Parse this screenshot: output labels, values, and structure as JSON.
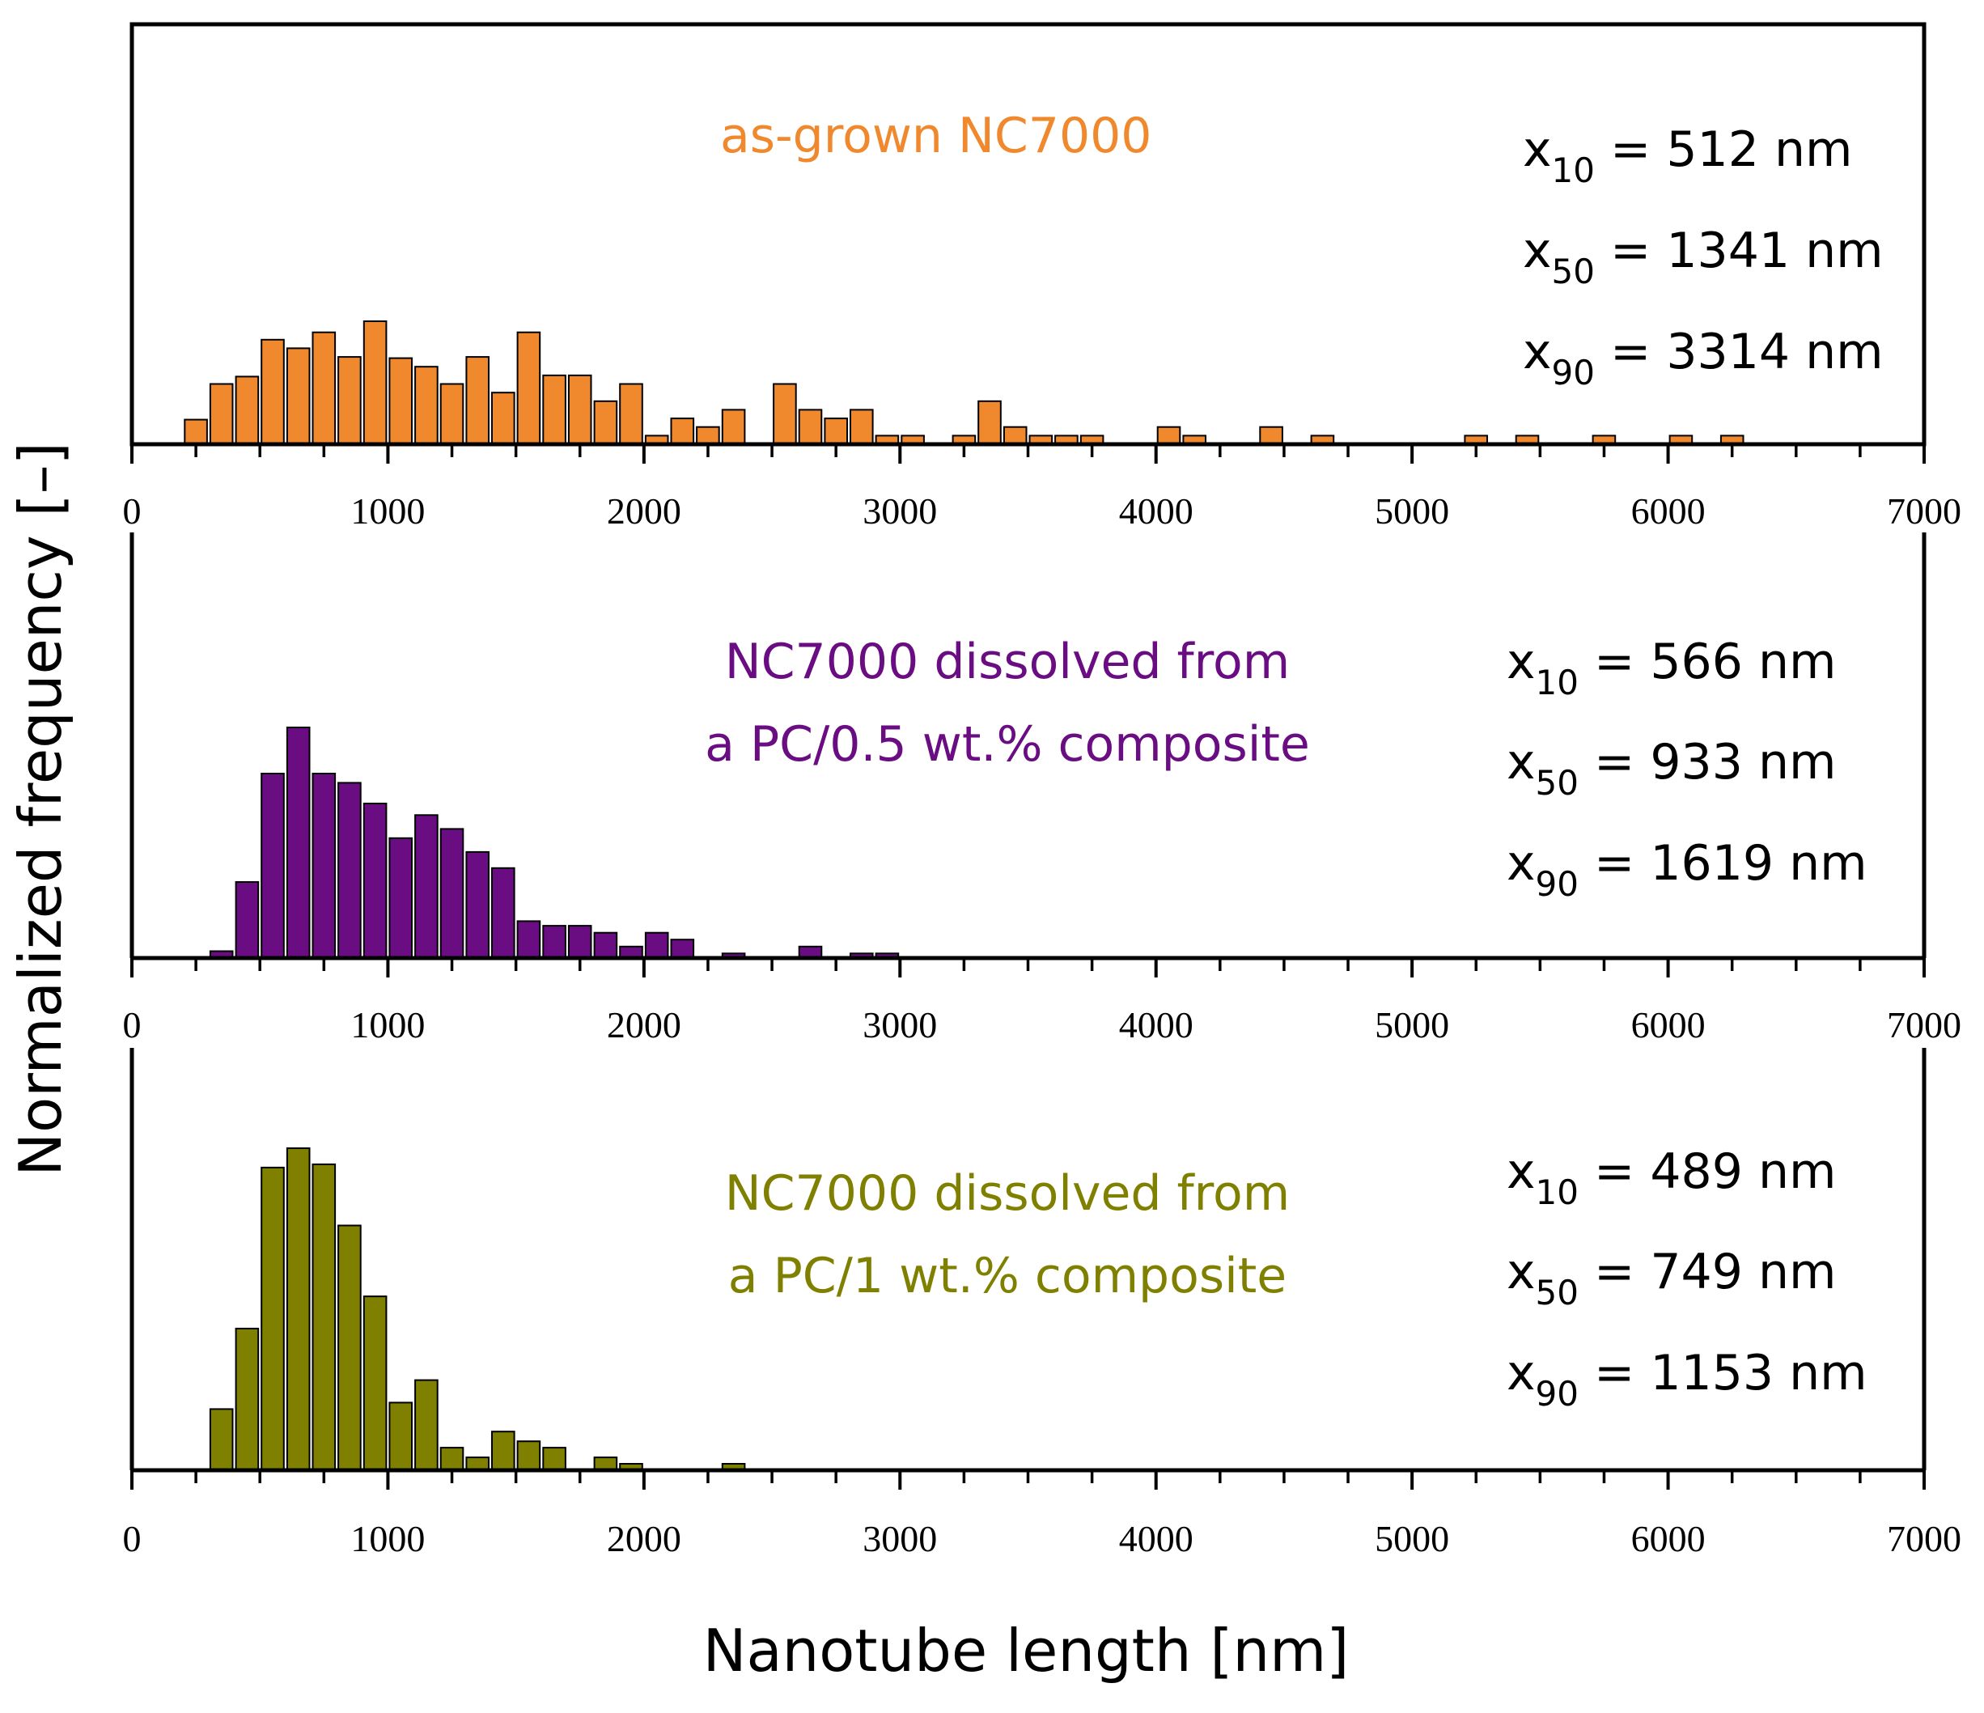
{
  "ylabel": "Normalized frequency [–]",
  "xlabel": "Nanotube length [nm]",
  "chart_data": [
    {
      "type": "bar",
      "title": "as-grown NC7000",
      "color": "#F0892E",
      "xlim": [
        0,
        7000
      ],
      "xticks": [
        "0",
        "1000",
        "2000",
        "3000",
        "4000",
        "5000",
        "6000",
        "7000"
      ],
      "bin_width": 100,
      "bins": [
        {
          "x": 250,
          "y": 0.2
        },
        {
          "x": 350,
          "y": 0.49
        },
        {
          "x": 450,
          "y": 0.55
        },
        {
          "x": 550,
          "y": 0.85
        },
        {
          "x": 650,
          "y": 0.78
        },
        {
          "x": 750,
          "y": 0.91
        },
        {
          "x": 850,
          "y": 0.71
        },
        {
          "x": 950,
          "y": 1.0
        },
        {
          "x": 1050,
          "y": 0.7
        },
        {
          "x": 1150,
          "y": 0.63
        },
        {
          "x": 1250,
          "y": 0.49
        },
        {
          "x": 1350,
          "y": 0.71
        },
        {
          "x": 1450,
          "y": 0.42
        },
        {
          "x": 1550,
          "y": 0.91
        },
        {
          "x": 1650,
          "y": 0.56
        },
        {
          "x": 1750,
          "y": 0.56
        },
        {
          "x": 1850,
          "y": 0.35
        },
        {
          "x": 1950,
          "y": 0.49
        },
        {
          "x": 2050,
          "y": 0.07
        },
        {
          "x": 2150,
          "y": 0.21
        },
        {
          "x": 2250,
          "y": 0.14
        },
        {
          "x": 2350,
          "y": 0.28
        },
        {
          "x": 2550,
          "y": 0.49
        },
        {
          "x": 2650,
          "y": 0.28
        },
        {
          "x": 2750,
          "y": 0.21
        },
        {
          "x": 2850,
          "y": 0.28
        },
        {
          "x": 2950,
          "y": 0.07
        },
        {
          "x": 3050,
          "y": 0.07
        },
        {
          "x": 3250,
          "y": 0.07
        },
        {
          "x": 3350,
          "y": 0.35
        },
        {
          "x": 3450,
          "y": 0.14
        },
        {
          "x": 3550,
          "y": 0.07
        },
        {
          "x": 3650,
          "y": 0.07
        },
        {
          "x": 3750,
          "y": 0.07
        },
        {
          "x": 4050,
          "y": 0.14
        },
        {
          "x": 4150,
          "y": 0.07
        },
        {
          "x": 4450,
          "y": 0.14
        },
        {
          "x": 4650,
          "y": 0.07
        },
        {
          "x": 5250,
          "y": 0.07
        },
        {
          "x": 5450,
          "y": 0.07
        },
        {
          "x": 5750,
          "y": 0.07
        },
        {
          "x": 6050,
          "y": 0.07
        },
        {
          "x": 6250,
          "y": 0.07
        }
      ],
      "stats": [
        {
          "sub": "10",
          "value": "512 nm"
        },
        {
          "sub": "50",
          "value": "1341 nm"
        },
        {
          "sub": "90",
          "value": "3314 nm"
        }
      ]
    },
    {
      "type": "bar",
      "title": "NC7000 dissolved from a PC/0.5 wt.% composite",
      "title_lines": [
        "NC7000 dissolved from",
        "a PC/0.5 wt.% composite"
      ],
      "color": "#6A0D83",
      "xlim": [
        0,
        7000
      ],
      "xticks": [
        "0",
        "1000",
        "2000",
        "3000",
        "4000",
        "5000",
        "6000",
        "7000"
      ],
      "bin_width": 100,
      "bins": [
        {
          "x": 350,
          "y": 0.03
        },
        {
          "x": 450,
          "y": 0.33
        },
        {
          "x": 550,
          "y": 0.8
        },
        {
          "x": 650,
          "y": 1.0
        },
        {
          "x": 750,
          "y": 0.8
        },
        {
          "x": 850,
          "y": 0.76
        },
        {
          "x": 950,
          "y": 0.67
        },
        {
          "x": 1050,
          "y": 0.52
        },
        {
          "x": 1150,
          "y": 0.62
        },
        {
          "x": 1250,
          "y": 0.56
        },
        {
          "x": 1350,
          "y": 0.46
        },
        {
          "x": 1450,
          "y": 0.39
        },
        {
          "x": 1550,
          "y": 0.16
        },
        {
          "x": 1650,
          "y": 0.14
        },
        {
          "x": 1750,
          "y": 0.14
        },
        {
          "x": 1850,
          "y": 0.11
        },
        {
          "x": 1950,
          "y": 0.05
        },
        {
          "x": 2050,
          "y": 0.11
        },
        {
          "x": 2150,
          "y": 0.08
        },
        {
          "x": 2350,
          "y": 0.02
        },
        {
          "x": 2650,
          "y": 0.05
        },
        {
          "x": 2850,
          "y": 0.02
        },
        {
          "x": 2950,
          "y": 0.02
        }
      ],
      "stats": [
        {
          "sub": "10",
          "value": "566 nm"
        },
        {
          "sub": "50",
          "value": "933 nm"
        },
        {
          "sub": "90",
          "value": "1619 nm"
        }
      ]
    },
    {
      "type": "bar",
      "title": "NC7000 dissolved from a PC/1 wt.% composite",
      "title_lines": [
        "NC7000 dissolved from",
        "a PC/1 wt.% composite"
      ],
      "color": "#808000",
      "xlim": [
        0,
        7000
      ],
      "xticks": [
        "0",
        "1000",
        "2000",
        "3000",
        "4000",
        "5000",
        "6000",
        "7000"
      ],
      "bin_width": 100,
      "bins": [
        {
          "x": 350,
          "y": 0.19
        },
        {
          "x": 450,
          "y": 0.44
        },
        {
          "x": 550,
          "y": 0.94
        },
        {
          "x": 650,
          "y": 1.0
        },
        {
          "x": 750,
          "y": 0.95
        },
        {
          "x": 850,
          "y": 0.76
        },
        {
          "x": 950,
          "y": 0.54
        },
        {
          "x": 1050,
          "y": 0.21
        },
        {
          "x": 1150,
          "y": 0.28
        },
        {
          "x": 1250,
          "y": 0.07
        },
        {
          "x": 1350,
          "y": 0.04
        },
        {
          "x": 1450,
          "y": 0.12
        },
        {
          "x": 1550,
          "y": 0.09
        },
        {
          "x": 1650,
          "y": 0.07
        },
        {
          "x": 1850,
          "y": 0.04
        },
        {
          "x": 1950,
          "y": 0.02
        },
        {
          "x": 2350,
          "y": 0.02
        }
      ],
      "stats": [
        {
          "sub": "10",
          "value": "489 nm"
        },
        {
          "sub": "50",
          "value": "749 nm"
        },
        {
          "sub": "90",
          "value": "1153 nm"
        }
      ]
    }
  ]
}
